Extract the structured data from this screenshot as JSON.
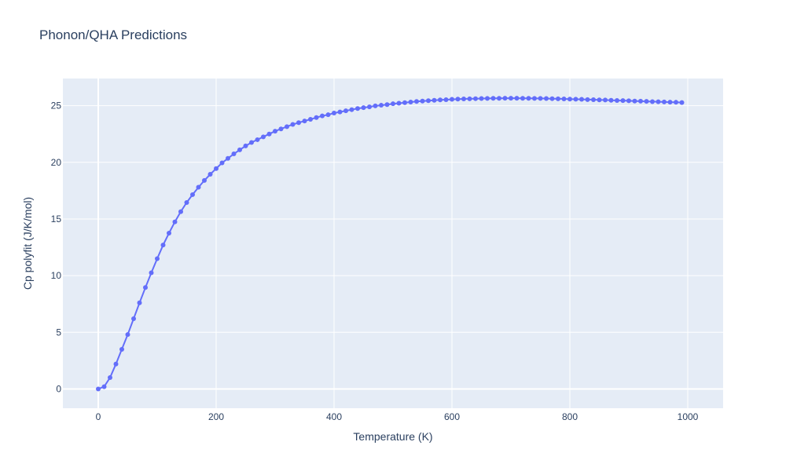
{
  "chart_data": {
    "type": "line",
    "title": "Phonon/QHA Predictions",
    "xlabel": "Temperature (K)",
    "ylabel": "Cp polyfit (J/K/mol)",
    "xlim": [
      -60,
      1060
    ],
    "ylim": [
      -1.7,
      27.4
    ],
    "xticks": [
      0,
      200,
      400,
      600,
      800,
      1000
    ],
    "yticks": [
      0,
      5,
      10,
      15,
      20,
      25
    ],
    "grid": true,
    "legend": "none",
    "colors": {
      "series": "#636efa",
      "plot_bg": "#e5ecf6",
      "grid": "#ffffff",
      "text": "#2a3f5f"
    },
    "series": [
      {
        "x": [
          0,
          10,
          20,
          30,
          40,
          50,
          60,
          70,
          80,
          90,
          100,
          110,
          120,
          130,
          140,
          150,
          160,
          170,
          180,
          190,
          200,
          210,
          220,
          230,
          240,
          250,
          260,
          270,
          280,
          290,
          300,
          310,
          320,
          330,
          340,
          350,
          360,
          370,
          380,
          390,
          400,
          410,
          420,
          430,
          440,
          450,
          460,
          470,
          480,
          490,
          500,
          510,
          520,
          530,
          540,
          550,
          560,
          570,
          580,
          590,
          600,
          610,
          620,
          630,
          640,
          650,
          660,
          670,
          680,
          690,
          700,
          710,
          720,
          730,
          740,
          750,
          760,
          770,
          780,
          790,
          800,
          810,
          820,
          830,
          840,
          850,
          860,
          870,
          880,
          890,
          900,
          910,
          920,
          930,
          940,
          950,
          960,
          970,
          980,
          990
        ],
        "y": [
          0,
          0.2,
          1.0,
          2.2,
          3.5,
          4.8,
          6.2,
          7.6,
          8.95,
          10.25,
          11.5,
          12.7,
          13.75,
          14.75,
          15.65,
          16.45,
          17.15,
          17.8,
          18.4,
          18.95,
          19.45,
          19.95,
          20.35,
          20.75,
          21.1,
          21.45,
          21.75,
          22.0,
          22.25,
          22.5,
          22.75,
          22.95,
          23.15,
          23.35,
          23.5,
          23.65,
          23.8,
          23.95,
          24.1,
          24.2,
          24.35,
          24.45,
          24.55,
          24.65,
          24.75,
          24.83,
          24.9,
          24.98,
          25.04,
          25.1,
          25.17,
          25.22,
          25.27,
          25.32,
          25.37,
          25.41,
          25.44,
          25.48,
          25.51,
          25.53,
          25.56,
          25.58,
          25.6,
          25.61,
          25.62,
          25.63,
          25.64,
          25.65,
          25.65,
          25.66,
          25.66,
          25.66,
          25.65,
          25.65,
          25.64,
          25.64,
          25.63,
          25.62,
          25.61,
          25.6,
          25.58,
          25.57,
          25.56,
          25.54,
          25.53,
          25.51,
          25.5,
          25.48,
          25.46,
          25.45,
          25.43,
          25.41,
          25.4,
          25.38,
          25.36,
          25.35,
          25.33,
          25.31,
          25.3,
          25.28
        ]
      }
    ]
  }
}
